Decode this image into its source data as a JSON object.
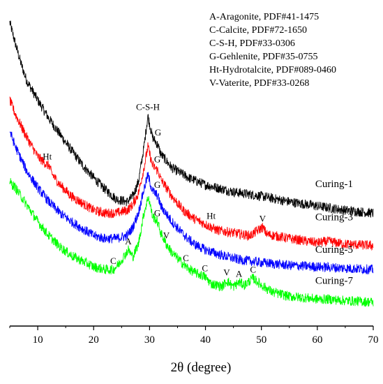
{
  "chart_data": {
    "type": "line",
    "title": "",
    "xlabel": "2θ (degree)",
    "ylabel": "",
    "xlim": [
      5,
      70
    ],
    "x_ticks": [
      10,
      20,
      30,
      40,
      50,
      60,
      70
    ],
    "grid": false,
    "y_axis_shown": false,
    "legend": {
      "placement": "top-right",
      "entries": [
        "A-Aragonite, PDF#41-1475",
        "C-Calcite, PDF#72-1650",
        "C-S-H, PDF#33-0306",
        "G-Gehlenite, PDF#35-0755",
        "Ht-Hydrotalcite, PDF#089-0460",
        "V-Vaterite, PDF#33-0268"
      ]
    },
    "series": [
      {
        "name": "Curing-1",
        "color": "#000000",
        "label_x": 63,
        "label_y": 0.965,
        "points": [
          [
            5,
            2.13
          ],
          [
            6,
            1.98
          ],
          [
            7,
            1.84
          ],
          [
            8,
            1.72
          ],
          [
            10,
            1.58
          ],
          [
            12,
            1.45
          ],
          [
            15,
            1.28
          ],
          [
            18,
            1.12
          ],
          [
            20,
            1.03
          ],
          [
            22,
            0.95
          ],
          [
            24,
            0.88
          ],
          [
            26,
            0.86
          ],
          [
            27,
            0.9
          ],
          [
            28,
            1.0
          ],
          [
            29,
            1.25
          ],
          [
            29.7,
            1.47
          ],
          [
            30.5,
            1.32
          ],
          [
            31.5,
            1.26
          ],
          [
            32,
            1.2
          ],
          [
            34,
            1.1
          ],
          [
            37,
            1.03
          ],
          [
            40,
            0.98
          ],
          [
            45,
            0.93
          ],
          [
            50,
            0.9
          ],
          [
            55,
            0.86
          ],
          [
            60,
            0.83
          ],
          [
            65,
            0.8
          ],
          [
            70,
            0.78
          ]
        ],
        "peaks": [
          {
            "x": 29.7,
            "y": 1.47,
            "label": "C-S-H"
          },
          {
            "x": 31.5,
            "y": 1.29,
            "label": "G"
          }
        ]
      },
      {
        "name": "Curing-3",
        "color": "#ff0000",
        "label_x": 63,
        "label_y": 0.73,
        "points": [
          [
            5,
            1.58
          ],
          [
            6,
            1.48
          ],
          [
            8,
            1.32
          ],
          [
            10,
            1.18
          ],
          [
            11.7,
            1.12
          ],
          [
            12,
            1.12
          ],
          [
            12.5,
            1.06
          ],
          [
            14,
            0.98
          ],
          [
            16,
            0.9
          ],
          [
            18,
            0.85
          ],
          [
            20,
            0.8
          ],
          [
            22,
            0.78
          ],
          [
            24,
            0.78
          ],
          [
            26,
            0.8
          ],
          [
            27,
            0.84
          ],
          [
            28,
            0.92
          ],
          [
            29,
            1.1
          ],
          [
            29.7,
            1.25
          ],
          [
            30.5,
            1.12
          ],
          [
            31.5,
            1.08
          ],
          [
            32,
            1.02
          ],
          [
            34,
            0.9
          ],
          [
            36,
            0.8
          ],
          [
            38,
            0.74
          ],
          [
            40,
            0.7
          ],
          [
            42,
            0.66
          ],
          [
            45,
            0.64
          ],
          [
            48,
            0.62
          ],
          [
            50.2,
            0.68
          ],
          [
            51,
            0.63
          ],
          [
            55,
            0.6
          ],
          [
            60,
            0.57
          ],
          [
            62,
            0.58
          ],
          [
            65,
            0.56
          ],
          [
            70,
            0.55
          ]
        ],
        "peaks": [
          {
            "x": 11.7,
            "y": 1.12,
            "label": "Ht"
          },
          {
            "x": 31.4,
            "y": 1.1,
            "label": "G"
          },
          {
            "x": 41,
            "y": 0.7,
            "label": "Ht"
          },
          {
            "x": 50.2,
            "y": 0.68,
            "label": "V"
          }
        ]
      },
      {
        "name": "Curing-3",
        "color": "#ff0000",
        "label_x": 63,
        "label_y": 0.66,
        "points": [],
        "peaks": []
      },
      {
        "name": "Curing-5",
        "color": "#0000ff",
        "label_x": 63,
        "label_y": 0.5,
        "points": [
          [
            5,
            1.36
          ],
          [
            6,
            1.25
          ],
          [
            8,
            1.08
          ],
          [
            10,
            0.96
          ],
          [
            12,
            0.86
          ],
          [
            14,
            0.78
          ],
          [
            16,
            0.72
          ],
          [
            18,
            0.67
          ],
          [
            20,
            0.62
          ],
          [
            22,
            0.6
          ],
          [
            24,
            0.6
          ],
          [
            26,
            0.62
          ],
          [
            27,
            0.68
          ],
          [
            28,
            0.78
          ],
          [
            29,
            0.95
          ],
          [
            29.7,
            1.05
          ],
          [
            30.5,
            0.94
          ],
          [
            31.5,
            0.9
          ],
          [
            32,
            0.83
          ],
          [
            34,
            0.72
          ],
          [
            36,
            0.63
          ],
          [
            38,
            0.56
          ],
          [
            40,
            0.52
          ],
          [
            43,
            0.48
          ],
          [
            46,
            0.45
          ],
          [
            50,
            0.43
          ],
          [
            55,
            0.41
          ],
          [
            60,
            0.4
          ],
          [
            65,
            0.39
          ],
          [
            70,
            0.38
          ]
        ],
        "peaks": [
          {
            "x": 31.4,
            "y": 0.92,
            "label": "G"
          }
        ]
      },
      {
        "name": "Curing-7",
        "color": "#00ff00",
        "label_x": 63,
        "label_y": 0.28,
        "points": [
          [
            5,
            1.0
          ],
          [
            6,
            0.96
          ],
          [
            8,
            0.84
          ],
          [
            10,
            0.72
          ],
          [
            12,
            0.62
          ],
          [
            14,
            0.54
          ],
          [
            16,
            0.48
          ],
          [
            18,
            0.44
          ],
          [
            20,
            0.4
          ],
          [
            22,
            0.38
          ],
          [
            23.5,
            0.38
          ],
          [
            24.5,
            0.42
          ],
          [
            26.2,
            0.52
          ],
          [
            27,
            0.47
          ],
          [
            28,
            0.56
          ],
          [
            29,
            0.78
          ],
          [
            29.8,
            0.9
          ],
          [
            30.5,
            0.76
          ],
          [
            31.4,
            0.72
          ],
          [
            32,
            0.64
          ],
          [
            33,
            0.56
          ],
          [
            34,
            0.5
          ],
          [
            36.5,
            0.4
          ],
          [
            38,
            0.36
          ],
          [
            39.9,
            0.33
          ],
          [
            41,
            0.28
          ],
          [
            43,
            0.26
          ],
          [
            43.8,
            0.3
          ],
          [
            45,
            0.26
          ],
          [
            46,
            0.29
          ],
          [
            47,
            0.27
          ],
          [
            48.5,
            0.32
          ],
          [
            50,
            0.27
          ],
          [
            52,
            0.22
          ],
          [
            55,
            0.19
          ],
          [
            58,
            0.18
          ],
          [
            60,
            0.17
          ],
          [
            62,
            0.17
          ],
          [
            65,
            0.16
          ],
          [
            70,
            0.15
          ]
        ],
        "peaks": [
          {
            "x": 23.5,
            "y": 0.38,
            "label": "C"
          },
          {
            "x": 26.2,
            "y": 0.52,
            "label": "A"
          },
          {
            "x": 31.4,
            "y": 0.72,
            "label": "G"
          },
          {
            "x": 33,
            "y": 0.56,
            "label": "V"
          },
          {
            "x": 36.5,
            "y": 0.4,
            "label": "C"
          },
          {
            "x": 39.9,
            "y": 0.33,
            "label": "C"
          },
          {
            "x": 43.8,
            "y": 0.3,
            "label": "V"
          },
          {
            "x": 46,
            "y": 0.29,
            "label": "A"
          },
          {
            "x": 48.5,
            "y": 0.32,
            "label": "C"
          }
        ]
      }
    ]
  }
}
